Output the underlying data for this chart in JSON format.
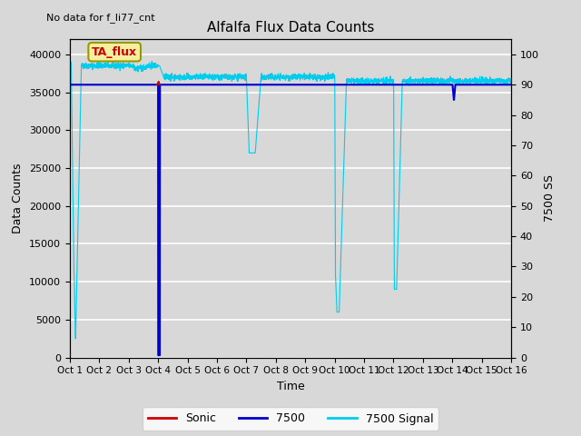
{
  "title": "Alfalfa Flux Data Counts",
  "ylabel_left": "Data Counts",
  "ylabel_right": "7500 SS",
  "xlabel": "Time",
  "note_text": "No data for f_li77_cnt",
  "annotation_text": "TA_flux",
  "bg_color": "#d8d8d8",
  "ylim_left": [
    0,
    42000
  ],
  "ylim_right": [
    0,
    105
  ],
  "xlim": [
    0,
    15
  ],
  "xtick_labels": [
    "Oct 1",
    "Oct 2",
    "Oct 3",
    "Oct 4",
    "Oct 5",
    "Oct 6",
    "Oct 7",
    "Oct 8",
    "Oct 9",
    "Oct 10",
    "Oct 11",
    "Oct 12",
    "Oct 13",
    "Oct 14",
    "Oct 15",
    "Oct 16"
  ],
  "yticks_left": [
    0,
    5000,
    10000,
    15000,
    20000,
    25000,
    30000,
    35000,
    40000
  ],
  "yticks_right": [
    0,
    10,
    20,
    30,
    40,
    50,
    60,
    70,
    80,
    90,
    100
  ],
  "legend_labels": [
    "Sonic",
    "7500",
    "7500 Signal"
  ],
  "legend_colors": [
    "#cc0000",
    "#0000cc",
    "#00cccc"
  ]
}
